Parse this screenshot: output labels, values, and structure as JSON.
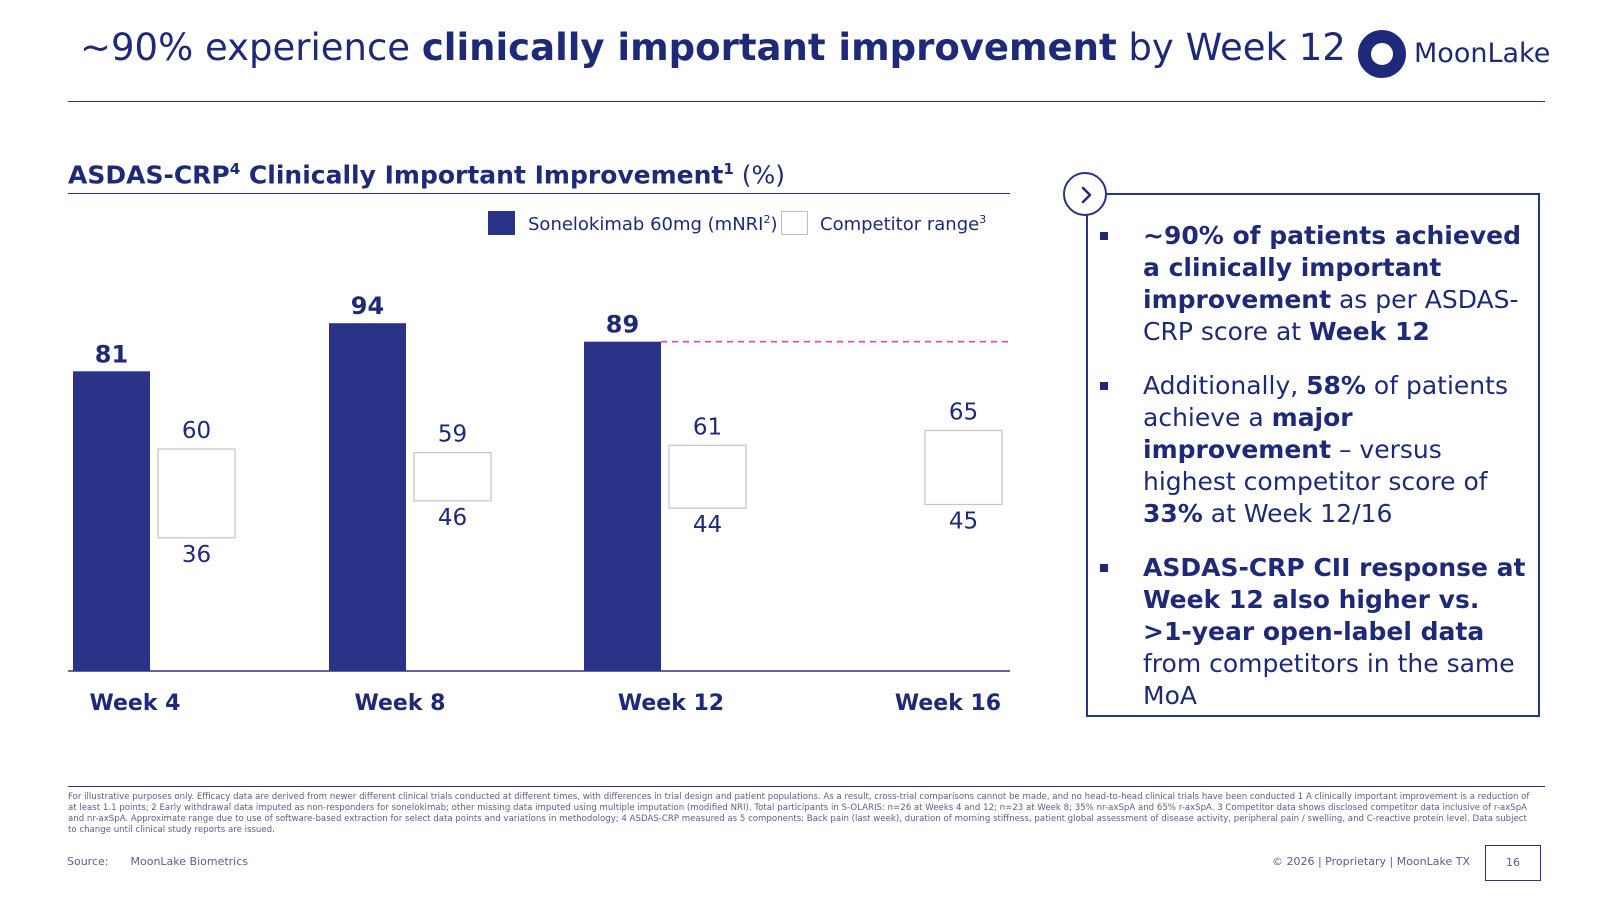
{
  "header": {
    "title_pre": "~90% experience ",
    "title_bold": "clinically important improvement",
    "title_post": " by Week 12",
    "logo_text": "MoonLake"
  },
  "chart_title": {
    "main": "ASDAS-CRP",
    "sup1": "4",
    "mid": " Clinically Important Improvement",
    "sup2": "1",
    "unit": " (%)"
  },
  "legend": {
    "series1_label": "Sonelokimab 60mg (mNRI",
    "series1_sup": "2",
    "series1_close": ")",
    "series2_label": "Competitor range",
    "series2_sup": "3"
  },
  "chart_data": {
    "type": "bar",
    "categories": [
      "Week 4",
      "Week 8",
      "Week 12",
      "Week 16"
    ],
    "series": [
      {
        "name": "Sonelokimab 60mg (mNRI2)",
        "values": [
          81,
          94,
          89,
          null
        ],
        "color": "#2b3388"
      },
      {
        "name": "Competitor range3",
        "ranges": [
          [
            36,
            60
          ],
          [
            46,
            59
          ],
          [
            44,
            61
          ],
          [
            45,
            65
          ]
        ],
        "color": "#ffffff"
      }
    ],
    "reference_line": {
      "value": 89,
      "color": "#e040c8",
      "style": "dashed"
    },
    "ylim": [
      0,
      100
    ]
  },
  "summary": {
    "bullets": [
      [
        {
          "t": "~90% of patients achieved a clinically important improvement",
          "b": true
        },
        {
          "t": " as per ASDAS-CRP score at ",
          "b": false
        },
        {
          "t": "Week 12",
          "b": true
        }
      ],
      [
        {
          "t": "Additionally, ",
          "b": false
        },
        {
          "t": "58%",
          "b": true
        },
        {
          "t": " of patients achieve a ",
          "b": false
        },
        {
          "t": "major improvement",
          "b": true
        },
        {
          "t": " – versus highest competitor score of ",
          "b": false
        },
        {
          "t": "33%",
          "b": true
        },
        {
          "t": " at Week 12/16",
          "b": false
        }
      ],
      [
        {
          "t": "ASDAS-CRP CII response at Week 12 also higher vs. >1-year open-label data",
          "b": true
        },
        {
          "t": " from competitors in the same MoA",
          "b": false
        }
      ]
    ]
  },
  "footer": {
    "footnote": "For illustrative purposes only. Efficacy data are derived from newer different clinical trials conducted at different times, with differences in trial design and patient populations. As a result, cross-trial comparisons cannot be made, and no head-to-head clinical trials have been conducted 1 A clinically important improvement is a reduction of at least 1.1 points; 2 Early withdrawal data imputed as non-responders for sonelokimab; other missing data imputed using multiple imputation (modified NRI). Total participants in S-OLARIS: n=26 at Weeks 4 and 12; n=23 at Week 8; 35% nr-axSpA and 65% r-axSpA. 3 Competitor data shows disclosed competitor data inclusive of r-axSpA and nr-axSpA. Approximate range due to use of software-based extraction for select data points and variations in methodology; 4 ASDAS-CRP measured as 5 components: Back pain (last week), duration of morning stiffness, patient global assessment of disease activity, peripheral pain / swelling, and C-reactive protein level. Data subject to change until clinical study reports are issued.",
    "source_label": "Source:",
    "source_value": "MoonLake Biometrics",
    "copyright": "© 2026 | Proprietary | MoonLake TX",
    "page_number": "16"
  }
}
